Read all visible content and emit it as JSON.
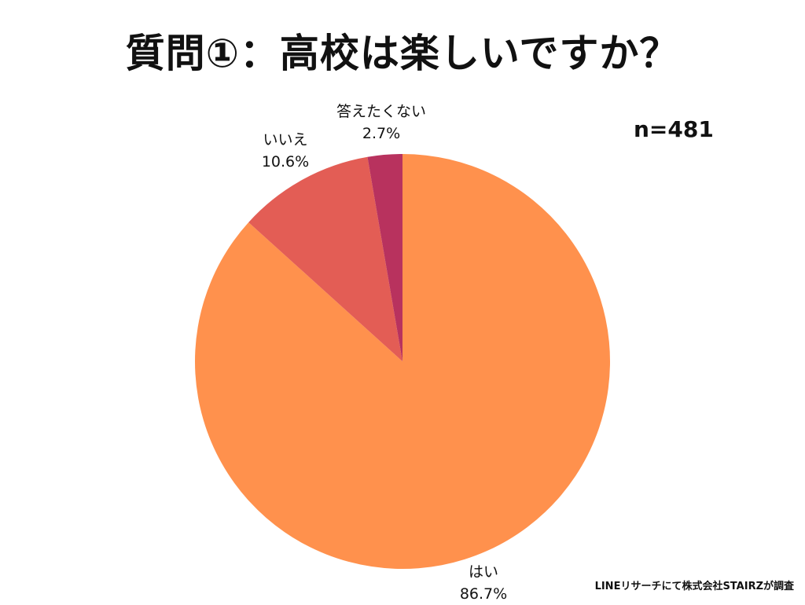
{
  "title": "質問①：高校は楽しいですか？",
  "sample_size": "n=481",
  "source_note": "LINEリサーチにて株式会社STAIRZが調査",
  "chart_data": {
    "type": "pie",
    "title": "質問①：高校は楽しいですか？",
    "slices": [
      {
        "label": "はい",
        "value": 86.7,
        "value_label": "86.7%",
        "color": "#FF914D"
      },
      {
        "label": "いいえ",
        "value": 10.6,
        "value_label": "10.6%",
        "color": "#E35D55"
      },
      {
        "label": "答えたくない",
        "value": 2.7,
        "value_label": "2.7%",
        "color": "#B8325E"
      }
    ],
    "start_angle": "12 o'clock, clockwise"
  }
}
